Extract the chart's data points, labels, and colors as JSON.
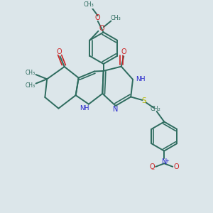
{
  "bg_color": "#dce6ea",
  "bond_color": "#2d6b5e",
  "n_color": "#2222cc",
  "o_color": "#cc2222",
  "s_color": "#b8b800",
  "lw": 1.4,
  "figsize": [
    3.0,
    3.0
  ],
  "dpi": 100,
  "xlim": [
    0,
    10
  ],
  "ylim": [
    0,
    10
  ]
}
